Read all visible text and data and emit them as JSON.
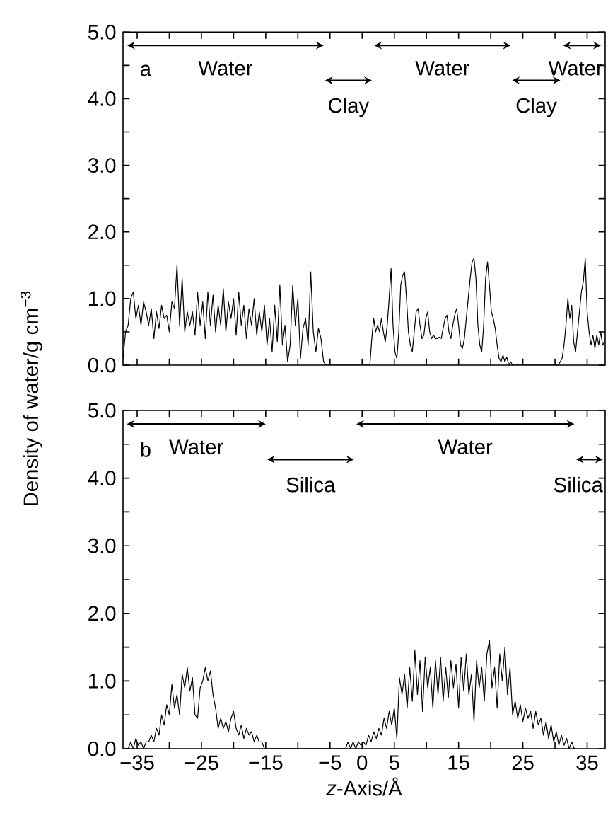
{
  "chart_data": [
    {
      "type": "line",
      "color": "#000000",
      "ylabel": "Density of water/g cm$^{−3}$",
      "annotations": [
        "a",
        "Water",
        "Clay",
        "Water",
        "Clay",
        "Water"
      ],
      "tick_labels": "y",
      "xlim": [
        -37.2,
        37.8
      ],
      "ylim": [
        0,
        5
      ],
      "xticks": [
        -35,
        -30,
        -25,
        -20,
        -15,
        -10,
        -5,
        0,
        5,
        10,
        15,
        20,
        25,
        30,
        35
      ],
      "yticks": [
        {
          "value": 0,
          "label": "0.0"
        },
        {
          "value": 0.5,
          "label": null
        },
        {
          "value": 1,
          "label": "1.0"
        },
        {
          "value": 1.5,
          "label": null
        },
        {
          "value": 2,
          "label": "2.0"
        },
        {
          "value": 2.5,
          "label": null
        },
        {
          "value": 3,
          "label": "3.0"
        },
        {
          "value": 3.5,
          "label": null
        },
        {
          "value": 4,
          "label": "4.0"
        },
        {
          "value": 4.5,
          "label": null
        },
        {
          "value": 5,
          "label": "5.0"
        }
      ],
      "x": [
        -37.2,
        -36.8,
        -36.4,
        -36.0,
        -35.6,
        -35.2,
        -34.8,
        -34.4,
        -34.0,
        -33.6,
        -33.2,
        -32.8,
        -32.4,
        -32.0,
        -31.6,
        -31.2,
        -30.8,
        -30.4,
        -30.0,
        -29.6,
        -29.2,
        -28.8,
        -28.4,
        -28.0,
        -27.6,
        -27.2,
        -26.8,
        -26.4,
        -26.0,
        -25.6,
        -25.2,
        -24.8,
        -24.4,
        -24.0,
        -23.6,
        -23.2,
        -22.8,
        -22.4,
        -22.0,
        -21.6,
        -21.2,
        -20.8,
        -20.4,
        -20.0,
        -19.6,
        -19.2,
        -18.8,
        -18.4,
        -18.0,
        -17.6,
        -17.2,
        -16.8,
        -16.4,
        -16.0,
        -15.6,
        -15.2,
        -14.8,
        -14.4,
        -14.0,
        -13.6,
        -13.2,
        -12.8,
        -12.4,
        -12.0,
        -11.6,
        -11.2,
        -10.8,
        -10.4,
        -10.0,
        -9.6,
        -9.2,
        -8.8,
        -8.4,
        -8.0,
        -7.6,
        -7.2,
        -6.8,
        -6.4,
        -6.0,
        -5.6,
        1.2,
        1.5,
        1.8,
        2.1,
        2.4,
        2.7,
        3.0,
        3.3,
        3.6,
        3.9,
        4.2,
        4.5,
        4.8,
        5.1,
        5.4,
        5.7,
        6.0,
        6.3,
        6.6,
        6.9,
        7.2,
        7.5,
        7.8,
        8.1,
        8.4,
        8.7,
        9.0,
        9.3,
        9.6,
        9.9,
        10.2,
        10.5,
        10.8,
        11.1,
        11.4,
        11.7,
        12.0,
        12.3,
        12.6,
        12.9,
        13.2,
        13.5,
        13.8,
        14.1,
        14.4,
        14.7,
        15.0,
        15.3,
        15.6,
        15.9,
        16.2,
        16.5,
        16.8,
        17.1,
        17.4,
        17.7,
        18.0,
        18.3,
        18.6,
        18.9,
        19.2,
        19.5,
        19.8,
        20.1,
        20.4,
        20.7,
        21.0,
        21.3,
        21.6,
        21.9,
        22.2,
        22.5,
        22.8,
        23.1,
        23.4,
        30.5,
        30.8,
        31.1,
        31.4,
        31.7,
        32.0,
        32.3,
        32.6,
        32.9,
        33.2,
        33.5,
        33.8,
        34.1,
        34.4,
        34.7,
        35.0,
        35.3,
        35.6,
        35.9,
        36.2,
        36.5,
        36.8,
        37.1,
        37.4,
        37.7
      ],
      "values": [
        0.1,
        0.5,
        0.6,
        1.0,
        1.1,
        0.7,
        0.9,
        0.6,
        0.95,
        0.8,
        0.6,
        0.85,
        0.4,
        0.8,
        0.55,
        0.9,
        0.7,
        0.75,
        0.5,
        0.95,
        0.85,
        1.5,
        0.6,
        1.3,
        0.5,
        0.8,
        0.6,
        0.8,
        0.45,
        1.1,
        0.6,
        0.95,
        0.4,
        1.1,
        0.6,
        1.05,
        0.5,
        0.9,
        0.6,
        1.15,
        0.5,
        0.95,
        0.7,
        1.0,
        0.45,
        1.1,
        0.6,
        0.9,
        0.4,
        0.85,
        0.6,
        1.0,
        0.45,
        0.8,
        0.5,
        0.9,
        0.3,
        0.7,
        0.2,
        0.9,
        0.35,
        1.2,
        0.3,
        0.6,
        0.05,
        0.3,
        1.2,
        0.6,
        1.0,
        0.1,
        0.55,
        0.7,
        0.3,
        1.4,
        0.5,
        0.2,
        0.55,
        0.4,
        0.05,
        0.0,
        0.0,
        0.4,
        0.7,
        0.5,
        0.6,
        0.5,
        0.7,
        0.5,
        0.35,
        0.6,
        1.0,
        1.45,
        0.6,
        0.2,
        0.1,
        0.5,
        1.2,
        1.35,
        1.4,
        1.0,
        0.5,
        0.3,
        0.2,
        0.5,
        0.8,
        0.85,
        0.6,
        0.4,
        0.45,
        0.7,
        0.8,
        0.5,
        0.4,
        0.45,
        0.4,
        0.4,
        0.42,
        0.4,
        0.55,
        0.7,
        0.75,
        0.5,
        0.4,
        0.6,
        0.75,
        0.85,
        0.6,
        0.3,
        0.25,
        0.4,
        0.7,
        1.0,
        1.3,
        1.55,
        1.6,
        1.3,
        0.6,
        0.3,
        0.2,
        0.6,
        1.3,
        1.55,
        1.2,
        0.8,
        0.7,
        0.55,
        0.3,
        0.1,
        0.05,
        0.15,
        0.05,
        0.12,
        0.0,
        0.05,
        0.0,
        0.0,
        0.05,
        0.1,
        0.3,
        0.6,
        1.0,
        0.7,
        0.9,
        0.35,
        0.2,
        0.5,
        0.8,
        1.1,
        1.25,
        1.6,
        0.8,
        0.5,
        0.3,
        0.45,
        0.25,
        0.45,
        0.3,
        0.5,
        0.3,
        0.35
      ]
    },
    {
      "type": "line",
      "color": "#000000",
      "xlabel": "*z*-Axis/Å",
      "annotations": [
        "b",
        "Water",
        "Silica",
        "Water",
        "Silica"
      ],
      "xlim": [
        -37.2,
        37.8
      ],
      "ylim": [
        0,
        5
      ],
      "xticks": [
        {
          "value": -35,
          "label": "−35"
        },
        {
          "value": -30,
          "label": null
        },
        {
          "value": -25,
          "label": "−25"
        },
        {
          "value": -20,
          "label": null
        },
        {
          "value": -15,
          "label": "−15"
        },
        {
          "value": -10,
          "label": null
        },
        {
          "value": -5,
          "label": "−5"
        },
        0,
        5,
        {
          "value": 10,
          "label": null
        },
        15,
        {
          "value": 20,
          "label": null
        },
        25,
        {
          "value": 30,
          "label": null
        },
        35
      ],
      "yticks": [
        {
          "value": 0,
          "label": "0.0"
        },
        {
          "value": 0.5,
          "label": null
        },
        {
          "value": 1,
          "label": "1.0"
        },
        {
          "value": 1.5,
          "label": null
        },
        {
          "value": 2,
          "label": "2.0"
        },
        {
          "value": 2.5,
          "label": null
        },
        {
          "value": 3,
          "label": "3.0"
        },
        {
          "value": 3.5,
          "label": null
        },
        {
          "value": 4,
          "label": "4.0"
        },
        {
          "value": 4.5,
          "label": null
        },
        {
          "value": 5,
          "label": "5.0"
        }
      ],
      "x": [
        -36.4,
        -36.0,
        -35.6,
        -35.2,
        -34.8,
        -34.4,
        -34.0,
        -33.6,
        -33.2,
        -32.8,
        -32.4,
        -32.0,
        -31.6,
        -31.2,
        -30.8,
        -30.4,
        -30.0,
        -29.6,
        -29.2,
        -28.8,
        -28.4,
        -28.0,
        -27.6,
        -27.2,
        -26.8,
        -26.4,
        -26.0,
        -25.6,
        -25.2,
        -24.8,
        -24.4,
        -24.0,
        -23.6,
        -23.2,
        -22.8,
        -22.4,
        -22.0,
        -21.6,
        -21.2,
        -20.8,
        -20.4,
        -20.0,
        -19.6,
        -19.2,
        -18.8,
        -18.4,
        -18.0,
        -17.6,
        -17.2,
        -16.8,
        -16.4,
        -16.0,
        -15.6,
        -15.2,
        -2.6,
        -2.2,
        -1.8,
        -1.4,
        -1.0,
        -0.6,
        -0.2,
        0.2,
        0.6,
        1.0,
        1.4,
        1.8,
        2.2,
        2.6,
        3.0,
        3.4,
        3.8,
        4.2,
        4.6,
        5.0,
        5.4,
        5.8,
        6.2,
        6.6,
        7.0,
        7.4,
        7.8,
        8.2,
        8.6,
        9.0,
        9.4,
        9.8,
        10.2,
        10.6,
        11.0,
        11.4,
        11.8,
        12.2,
        12.6,
        13.0,
        13.4,
        13.8,
        14.2,
        14.6,
        15.0,
        15.4,
        15.8,
        16.2,
        16.6,
        17.0,
        17.4,
        17.8,
        18.2,
        18.6,
        19.0,
        19.4,
        19.8,
        20.2,
        20.6,
        21.0,
        21.4,
        21.8,
        22.2,
        22.6,
        23.0,
        23.4,
        23.8,
        24.2,
        24.6,
        25.0,
        25.4,
        25.8,
        26.2,
        26.6,
        27.0,
        27.4,
        27.8,
        28.2,
        28.6,
        29.0,
        29.4,
        29.8,
        30.2,
        30.6,
        31.0,
        31.4,
        31.8,
        32.2,
        32.6,
        33.0
      ],
      "values": [
        0.0,
        0.1,
        0.0,
        0.15,
        0.05,
        0.1,
        0.0,
        0.1,
        0.1,
        0.2,
        0.1,
        0.3,
        0.2,
        0.5,
        0.35,
        0.65,
        0.5,
        0.95,
        0.6,
        0.8,
        0.5,
        1.1,
        0.9,
        1.2,
        0.85,
        1.05,
        0.5,
        0.45,
        0.9,
        1.0,
        1.2,
        1.0,
        1.15,
        0.8,
        0.6,
        0.3,
        0.45,
        0.3,
        0.4,
        0.25,
        0.45,
        0.55,
        0.3,
        0.2,
        0.35,
        0.15,
        0.3,
        0.2,
        0.25,
        0.1,
        0.2,
        0.1,
        0.1,
        0.0,
        0.0,
        0.1,
        0.0,
        0.1,
        0.0,
        0.1,
        0.05,
        0.1,
        0.05,
        0.2,
        0.1,
        0.25,
        0.15,
        0.3,
        0.2,
        0.45,
        0.3,
        0.55,
        0.35,
        0.6,
        0.15,
        1.05,
        0.8,
        1.1,
        0.6,
        1.2,
        0.7,
        1.45,
        0.8,
        1.3,
        0.55,
        1.35,
        0.9,
        1.2,
        0.6,
        1.3,
        0.8,
        1.35,
        0.7,
        1.2,
        0.75,
        1.3,
        0.9,
        1.25,
        0.6,
        1.35,
        0.85,
        1.4,
        0.8,
        1.1,
        0.4,
        1.3,
        0.9,
        1.2,
        0.7,
        1.4,
        1.6,
        0.9,
        1.2,
        0.6,
        1.4,
        1.0,
        1.5,
        0.8,
        1.2,
        0.5,
        0.7,
        0.45,
        0.65,
        0.4,
        0.6,
        0.45,
        0.55,
        0.3,
        0.55,
        0.35,
        0.45,
        0.2,
        0.4,
        0.15,
        0.35,
        0.1,
        0.25,
        0.05,
        0.2,
        0.05,
        0.15,
        0.0,
        0.1,
        0.0
      ]
    }
  ]
}
